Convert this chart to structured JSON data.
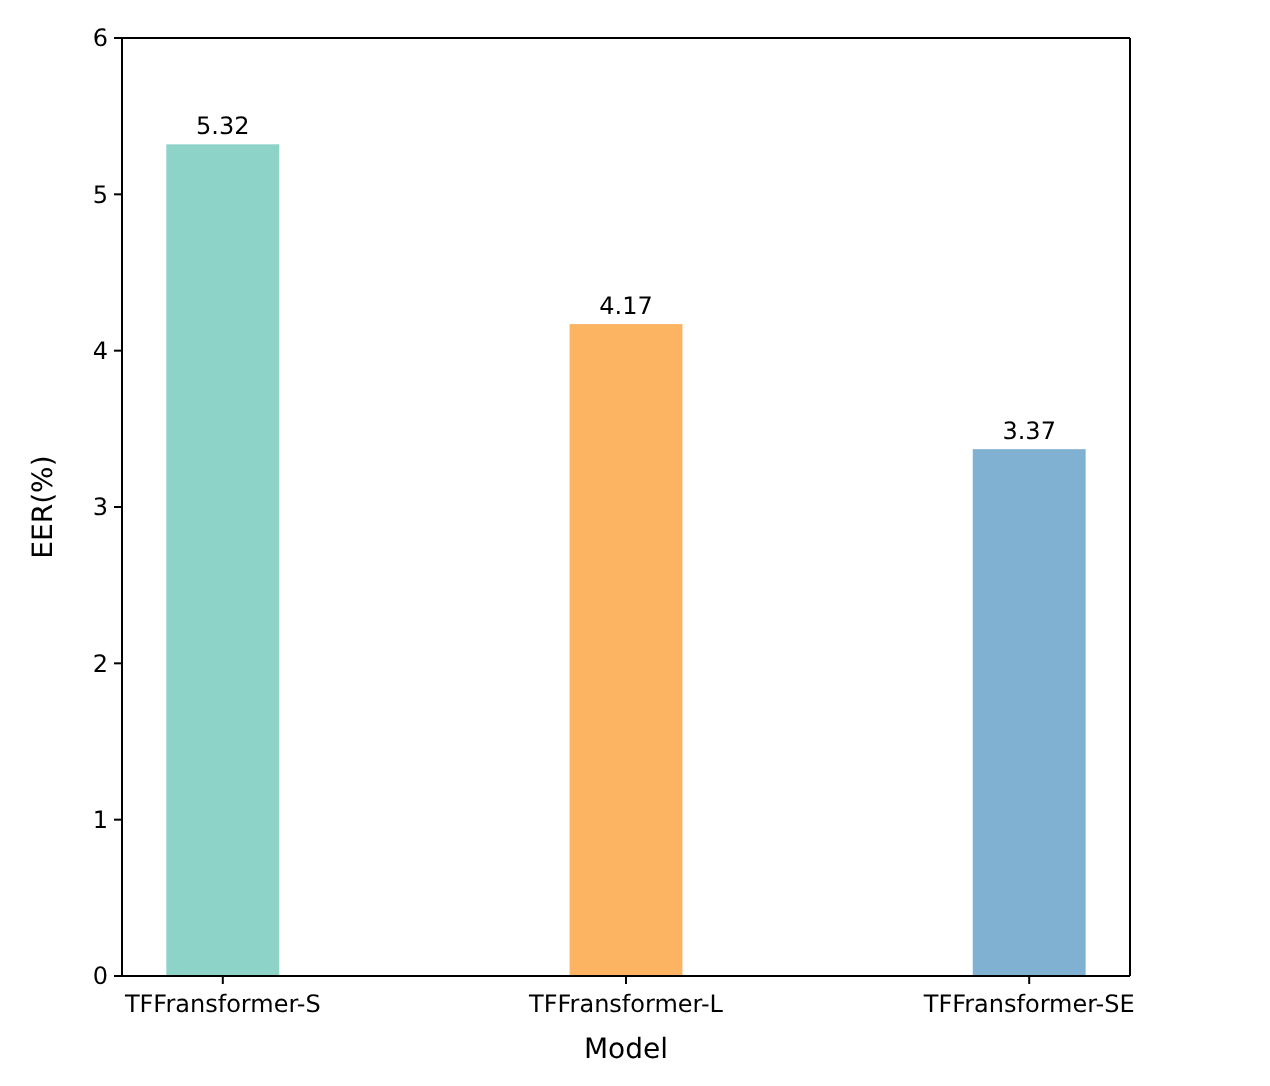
{
  "chart_data": {
    "type": "bar",
    "xlabel": "Model",
    "ylabel": "EER(%)",
    "categories": [
      "TFFransformer-S",
      "TFFransformer-L",
      "TFFransformer-SE"
    ],
    "values": [
      5.32,
      4.17,
      3.37
    ],
    "colors": [
      "#8dd3c7",
      "#fdb462",
      "#80b1d3"
    ],
    "ylim": [
      0,
      6
    ],
    "yticks": [
      0,
      1,
      2,
      3,
      4,
      5,
      6
    ],
    "data_labels": true
  }
}
